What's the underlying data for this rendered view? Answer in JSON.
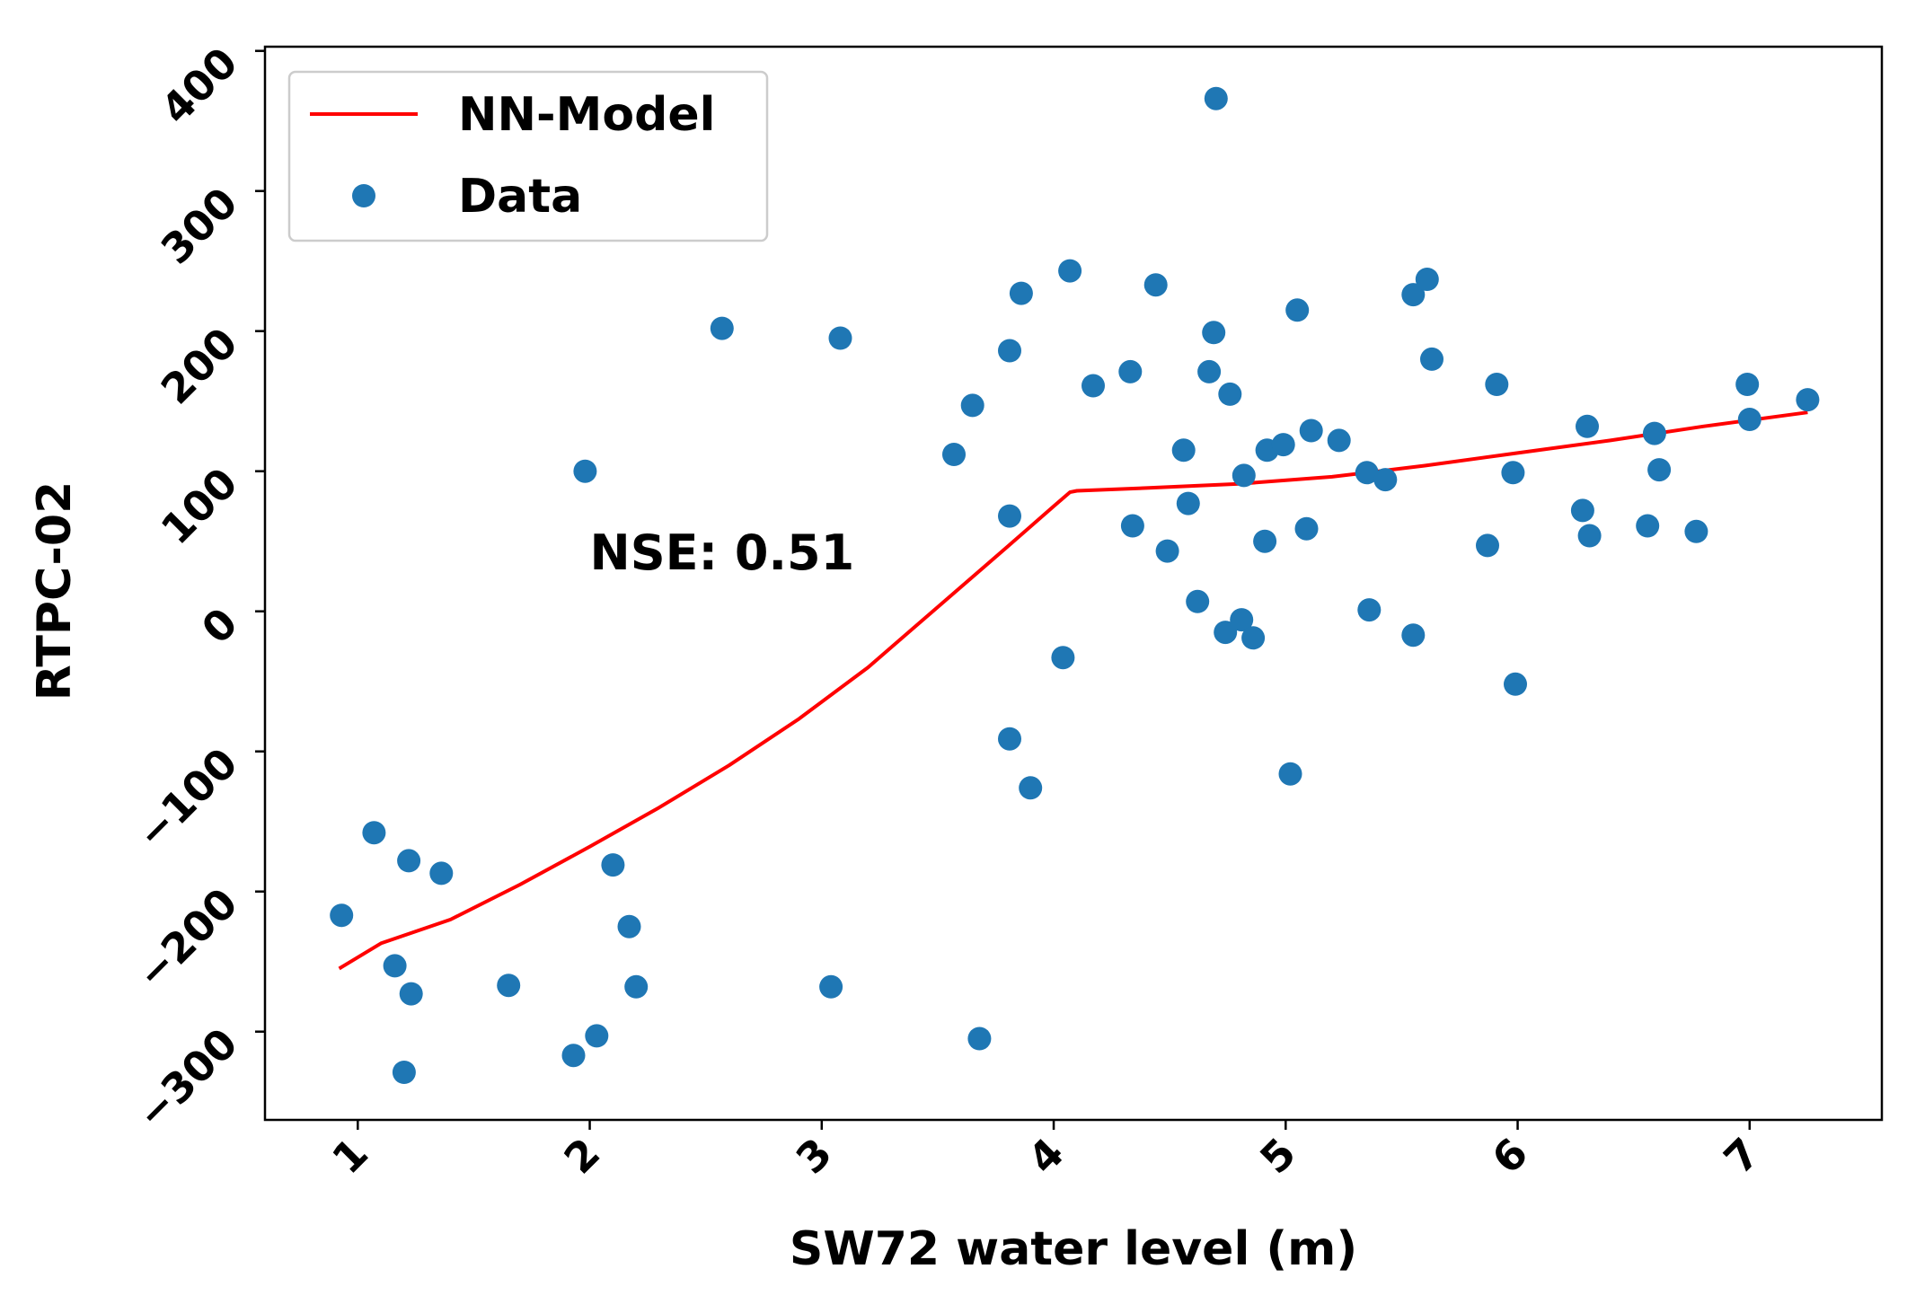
{
  "chart_data": {
    "type": "scatter",
    "xlabel": "SW72 water level (m)",
    "ylabel": "RTPC-02",
    "xlim": [
      0.6,
      7.57
    ],
    "ylim": [
      -363,
      403
    ],
    "xticks": [
      1,
      2,
      3,
      4,
      5,
      6,
      7
    ],
    "yticks": [
      -300,
      -200,
      -100,
      0,
      100,
      200,
      300,
      400
    ],
    "xtick_labels": [
      "1",
      "2",
      "3",
      "4",
      "5",
      "6",
      "7"
    ],
    "ytick_labels": [
      "−300",
      "−200",
      "−100",
      "0",
      "100",
      "200",
      "300",
      "400"
    ],
    "legend": {
      "placement": "top-left",
      "entries": [
        {
          "label": "NN-Model",
          "kind": "line",
          "color": "#ff0000"
        },
        {
          "label": "Data",
          "kind": "marker",
          "color": "#1f77b4"
        }
      ]
    },
    "annotation": {
      "text": "NSE: 0.51",
      "x": 2.0,
      "y": 30
    },
    "series": [
      {
        "name": "Data",
        "kind": "scatter",
        "color": "#1f77b4",
        "points": [
          [
            0.93,
            -217
          ],
          [
            1.07,
            -158
          ],
          [
            1.16,
            -253
          ],
          [
            1.22,
            -178
          ],
          [
            1.23,
            -273
          ],
          [
            1.2,
            -329
          ],
          [
            1.36,
            -187
          ],
          [
            1.65,
            -267
          ],
          [
            1.93,
            -317
          ],
          [
            1.98,
            100
          ],
          [
            2.03,
            -303
          ],
          [
            2.1,
            -181
          ],
          [
            2.17,
            -225
          ],
          [
            2.2,
            -268
          ],
          [
            2.57,
            202
          ],
          [
            3.04,
            -268
          ],
          [
            3.08,
            195
          ],
          [
            3.57,
            112
          ],
          [
            3.65,
            147
          ],
          [
            3.68,
            -305
          ],
          [
            3.81,
            186
          ],
          [
            3.81,
            68
          ],
          [
            3.81,
            -91
          ],
          [
            3.86,
            227
          ],
          [
            3.9,
            -126
          ],
          [
            4.04,
            -33
          ],
          [
            4.07,
            243
          ],
          [
            4.17,
            161
          ],
          [
            4.33,
            171
          ],
          [
            4.34,
            61
          ],
          [
            4.44,
            233
          ],
          [
            4.49,
            43
          ],
          [
            4.56,
            115
          ],
          [
            4.58,
            77
          ],
          [
            4.62,
            7
          ],
          [
            4.67,
            171
          ],
          [
            4.69,
            199
          ],
          [
            4.7,
            366
          ],
          [
            4.74,
            -15
          ],
          [
            4.76,
            155
          ],
          [
            4.81,
            -6
          ],
          [
            4.82,
            97
          ],
          [
            4.86,
            -19
          ],
          [
            4.91,
            50
          ],
          [
            4.92,
            115
          ],
          [
            4.99,
            119
          ],
          [
            5.02,
            -116
          ],
          [
            5.05,
            215
          ],
          [
            5.09,
            59
          ],
          [
            5.11,
            129
          ],
          [
            5.23,
            122
          ],
          [
            5.35,
            99
          ],
          [
            5.36,
            1
          ],
          [
            5.43,
            94
          ],
          [
            5.55,
            226
          ],
          [
            5.55,
            -17
          ],
          [
            5.61,
            237
          ],
          [
            5.63,
            180
          ],
          [
            5.87,
            47
          ],
          [
            5.91,
            162
          ],
          [
            5.98,
            99
          ],
          [
            5.99,
            -52
          ],
          [
            6.28,
            72
          ],
          [
            6.3,
            132
          ],
          [
            6.31,
            54
          ],
          [
            6.56,
            61
          ],
          [
            6.59,
            127
          ],
          [
            6.61,
            101
          ],
          [
            6.77,
            57
          ],
          [
            6.99,
            162
          ],
          [
            7.0,
            137
          ],
          [
            7.25,
            151
          ]
        ]
      },
      {
        "name": "NN-Model",
        "kind": "line",
        "color": "#ff0000",
        "points": [
          [
            0.92,
            -255
          ],
          [
            1.1,
            -237
          ],
          [
            1.4,
            -220
          ],
          [
            1.7,
            -195
          ],
          [
            2.0,
            -168
          ],
          [
            2.3,
            -140
          ],
          [
            2.6,
            -110
          ],
          [
            2.9,
            -77
          ],
          [
            3.2,
            -40
          ],
          [
            3.5,
            3
          ],
          [
            3.8,
            46
          ],
          [
            4.0,
            75
          ],
          [
            4.07,
            85
          ],
          [
            4.1,
            86
          ],
          [
            4.4,
            88
          ],
          [
            4.8,
            91
          ],
          [
            5.2,
            96
          ],
          [
            5.6,
            104
          ],
          [
            6.0,
            113
          ],
          [
            6.4,
            122
          ],
          [
            6.8,
            132
          ],
          [
            7.25,
            142
          ]
        ]
      }
    ]
  }
}
